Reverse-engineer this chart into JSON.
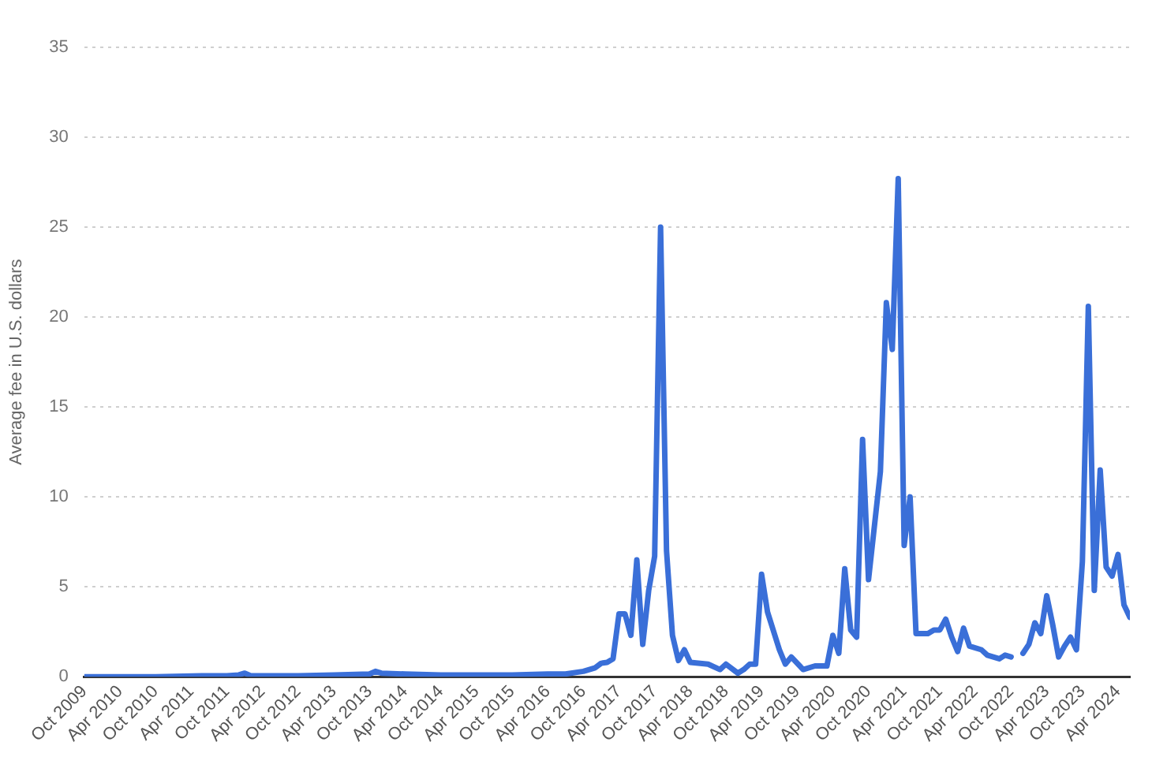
{
  "chart_data": {
    "type": "line",
    "ylabel": "Average fee in U.S. dollars",
    "ylim": [
      0,
      35
    ],
    "yticks": [
      0,
      5,
      10,
      15,
      20,
      25,
      30,
      35
    ],
    "xlim": [
      "2009-10",
      "2024-06"
    ],
    "xticks": [
      {
        "value": "2009-10",
        "label": "Oct 2009"
      },
      {
        "value": "2010-04",
        "label": "Apr 2010"
      },
      {
        "value": "2010-10",
        "label": "Oct 2010"
      },
      {
        "value": "2011-04",
        "label": "Apr 2011"
      },
      {
        "value": "2011-10",
        "label": "Oct 2011"
      },
      {
        "value": "2012-04",
        "label": "Apr 2012"
      },
      {
        "value": "2012-10",
        "label": "Oct 2012"
      },
      {
        "value": "2013-04",
        "label": "Apr 2013"
      },
      {
        "value": "2013-10",
        "label": "Oct 2013"
      },
      {
        "value": "2014-04",
        "label": "Apr 2014"
      },
      {
        "value": "2014-10",
        "label": "Oct 2014"
      },
      {
        "value": "2015-04",
        "label": "Apr 2015"
      },
      {
        "value": "2015-10",
        "label": "Oct 2015"
      },
      {
        "value": "2016-04",
        "label": "Apr 2016"
      },
      {
        "value": "2016-10",
        "label": "Oct 2016"
      },
      {
        "value": "2017-04",
        "label": "Apr 2017"
      },
      {
        "value": "2017-10",
        "label": "Oct 2017"
      },
      {
        "value": "2018-04",
        "label": "Apr 2018"
      },
      {
        "value": "2018-10",
        "label": "Oct 2018"
      },
      {
        "value": "2019-04",
        "label": "Apr 2019"
      },
      {
        "value": "2019-10",
        "label": "Oct 2019"
      },
      {
        "value": "2020-04",
        "label": "Apr 2020"
      },
      {
        "value": "2020-10",
        "label": "Oct 2020"
      },
      {
        "value": "2021-04",
        "label": "Apr 2021"
      },
      {
        "value": "2021-10",
        "label": "Oct 2021"
      },
      {
        "value": "2022-04",
        "label": "Apr 2022"
      },
      {
        "value": "2022-10",
        "label": "Oct 2022"
      },
      {
        "value": "2023-04",
        "label": "Apr 2023"
      },
      {
        "value": "2023-10",
        "label": "Oct 2023"
      },
      {
        "value": "2024-04",
        "label": "Apr 2024"
      }
    ],
    "grid": "y",
    "marker": "none",
    "line_style": "solid",
    "legend": false,
    "series": [
      {
        "color": "#3a6fd8",
        "x": [
          "2009-10",
          "2010-04",
          "2010-10",
          "2011-06",
          "2011-10",
          "2011-12",
          "2012-01",
          "2012-02",
          "2012-10",
          "2013-04",
          "2013-10",
          "2013-11",
          "2013-12",
          "2014-04",
          "2014-10",
          "2015-04",
          "2015-10",
          "2016-04",
          "2016-07",
          "2016-10",
          "2016-12",
          "2017-01",
          "2017-02",
          "2017-03",
          "2017-04",
          "2017-05",
          "2017-06",
          "2017-07",
          "2017-08",
          "2017-09",
          "2017-10",
          "2017-11",
          "2017-12",
          "2018-01",
          "2018-02",
          "2018-03",
          "2018-04",
          "2018-07",
          "2018-09",
          "2018-10",
          "2018-12",
          "2019-01",
          "2019-02",
          "2019-03",
          "2019-04",
          "2019-05",
          "2019-07",
          "2019-08",
          "2019-09",
          "2019-11",
          "2020-01",
          "2020-03",
          "2020-04",
          "2020-05",
          "2020-06",
          "2020-07",
          "2020-08",
          "2020-09",
          "2020-10",
          "2020-12",
          "2021-01",
          "2021-02",
          "2021-03",
          "2021-04",
          "2021-05",
          "2021-06",
          "2021-08",
          "2021-09",
          "2021-10",
          "2021-11",
          "2021-12",
          "2022-01",
          "2022-02",
          "2022-03",
          "2022-05",
          "2022-06",
          "2022-08",
          "2022-09",
          "2022-10",
          "2022-11",
          "2022-12",
          "2023-01",
          "2023-02",
          "2023-03",
          "2023-04",
          "2023-05",
          "2023-06",
          "2023-07",
          "2023-08",
          "2023-09",
          "2023-10",
          "2023-11",
          "2023-12",
          "2024-01",
          "2024-02",
          "2024-03",
          "2024-04",
          "2024-05",
          "2024-06"
        ],
        "values": [
          0,
          0,
          0,
          0.05,
          0.05,
          0.1,
          0.2,
          0.05,
          0.05,
          0.1,
          0.15,
          0.3,
          0.2,
          0.15,
          0.1,
          0.1,
          0.1,
          0.15,
          0.15,
          0.3,
          0.5,
          0.75,
          0.8,
          1.0,
          3.5,
          3.5,
          2.3,
          6.5,
          1.8,
          4.8,
          6.7,
          25,
          7,
          2.3,
          0.9,
          1.5,
          0.8,
          0.7,
          0.4,
          0.7,
          0.2,
          0.4,
          0.7,
          0.7,
          5.7,
          3.6,
          1.5,
          0.7,
          1.1,
          0.4,
          0.6,
          0.6,
          2.3,
          1.3,
          6.0,
          2.6,
          2.2,
          13.2,
          5.4,
          11.4,
          20.8,
          18.2,
          27.7,
          7.3,
          10,
          2.4,
          2.4,
          2.6,
          2.6,
          3.2,
          2.2,
          1.4,
          2.7,
          1.7,
          1.5,
          1.2,
          1.0,
          1.2,
          1.1,
          null,
          1.3,
          1.8,
          3.0,
          2.4,
          4.5,
          2.9,
          1.1,
          1.7,
          2.2,
          1.5,
          6.4,
          20.6,
          4.8,
          11.5,
          6.1,
          5.6,
          6.8,
          4.0,
          3.3
        ]
      }
    ]
  }
}
